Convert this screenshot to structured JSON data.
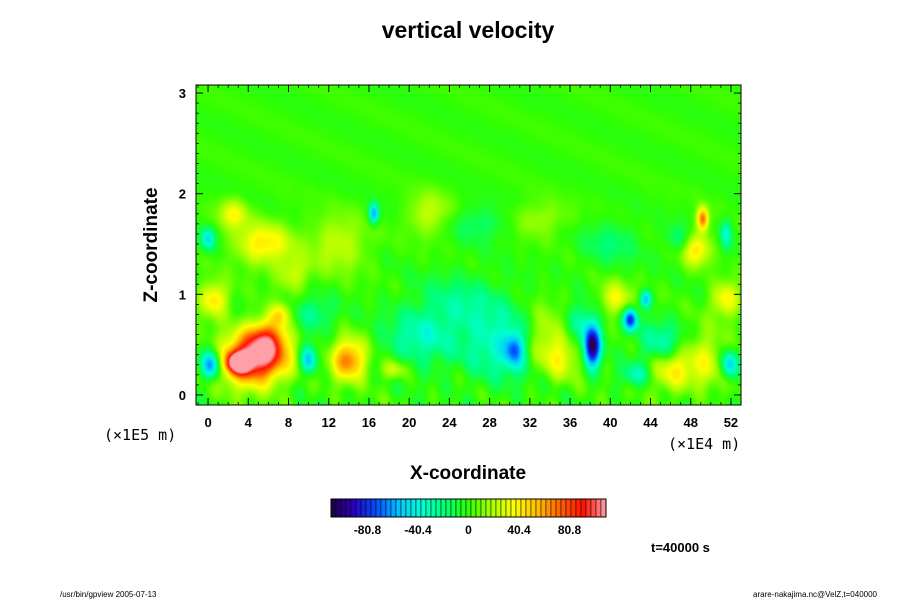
{
  "chart_data": {
    "type": "heatmap",
    "title": "vertical velocity",
    "xlabel": "X-coordinate",
    "ylabel": "Z-coordinate",
    "x_ticks": [
      "0",
      "4",
      "8",
      "12",
      "16",
      "20",
      "24",
      "28",
      "32",
      "36",
      "40",
      "44",
      "48",
      "52"
    ],
    "x_tick_values": [
      0,
      4,
      8,
      12,
      16,
      20,
      24,
      28,
      32,
      36,
      40,
      44,
      48,
      52
    ],
    "y_ticks": [
      "0",
      "1",
      "2",
      "3"
    ],
    "y_tick_values": [
      0,
      1,
      2,
      3
    ],
    "xlim": [
      -1.2,
      53
    ],
    "ylim": [
      -0.1,
      3.08
    ],
    "x_unit": "(×1E4 m)",
    "y_unit": "(×1E5 m)",
    "colorbar": {
      "ticks": [
        "-80.8",
        "-40.4",
        "0",
        "40.4",
        "80.8"
      ],
      "tick_values": [
        -80.8,
        -40.4,
        0,
        40.4,
        80.8
      ],
      "range": [
        -110,
        110
      ],
      "colors": [
        "#20003c",
        "#2a00c0",
        "#0050ff",
        "#00c8ff",
        "#00ffd0",
        "#00ff70",
        "#30ff00",
        "#a8ff00",
        "#ffff00",
        "#ffc000",
        "#ff6000",
        "#ff1000",
        "#ffa0a8"
      ]
    },
    "features": [
      {
        "x": 4.5,
        "z": 0.35,
        "w": 104,
        "sx": 2.2,
        "sz": 0.18
      },
      {
        "x": 3.0,
        "z": 0.32,
        "w": 92,
        "sx": 0.8,
        "sz": 0.07
      },
      {
        "x": 6.0,
        "z": 0.55,
        "w": 62,
        "sx": 1.4,
        "sz": 0.15
      },
      {
        "x": 5.5,
        "z": 1.5,
        "w": 42,
        "sx": 2.0,
        "sz": 0.15
      },
      {
        "x": 7.2,
        "z": 0.8,
        "w": 35,
        "sx": 0.7,
        "sz": 0.08
      },
      {
        "x": 0.3,
        "z": 0.3,
        "w": -72,
        "sx": 0.7,
        "sz": 0.1
      },
      {
        "x": 0.6,
        "z": 0.95,
        "w": 45,
        "sx": 1.0,
        "sz": 0.12
      },
      {
        "x": 2.5,
        "z": 1.8,
        "w": 35,
        "sx": 1.0,
        "sz": 0.1
      },
      {
        "x": 10.0,
        "z": 0.35,
        "w": -55,
        "sx": 0.6,
        "sz": 0.1
      },
      {
        "x": 10.5,
        "z": 0.8,
        "w": -25,
        "sx": 1.5,
        "sz": 0.12
      },
      {
        "x": 14.0,
        "z": 0.35,
        "w": 72,
        "sx": 1.2,
        "sz": 0.14
      },
      {
        "x": 13.0,
        "z": 1.5,
        "w": 25,
        "sx": 2.0,
        "sz": 0.2
      },
      {
        "x": 16.5,
        "z": 1.8,
        "w": -62,
        "sx": 0.35,
        "sz": 0.07
      },
      {
        "x": 18.5,
        "z": 0.25,
        "w": 30,
        "sx": 1.0,
        "sz": 0.07
      },
      {
        "x": 21.0,
        "z": 0.55,
        "w": -30,
        "sx": 2.5,
        "sz": 0.2
      },
      {
        "x": 22.0,
        "z": 1.8,
        "w": 25,
        "sx": 1.5,
        "sz": 0.15
      },
      {
        "x": 25.0,
        "z": 0.9,
        "w": -22,
        "sx": 3.0,
        "sz": 0.2
      },
      {
        "x": 29.0,
        "z": 0.5,
        "w": -35,
        "sx": 2.5,
        "sz": 0.25
      },
      {
        "x": 30.5,
        "z": 0.45,
        "w": -52,
        "sx": 0.7,
        "sz": 0.12
      },
      {
        "x": 38.2,
        "z": 0.47,
        "w": -104,
        "sx": 0.6,
        "sz": 0.14
      },
      {
        "x": 37.0,
        "z": 0.7,
        "w": -35,
        "sx": 1.5,
        "sz": 0.15
      },
      {
        "x": 34.0,
        "z": 0.6,
        "w": 30,
        "sx": 2.0,
        "sz": 0.2
      },
      {
        "x": 35.0,
        "z": 0.35,
        "w": 25,
        "sx": 1.5,
        "sz": 0.15
      },
      {
        "x": 42.0,
        "z": 0.75,
        "w": -82,
        "sx": 0.5,
        "sz": 0.08
      },
      {
        "x": 43.5,
        "z": 0.95,
        "w": -55,
        "sx": 0.4,
        "sz": 0.06
      },
      {
        "x": 40.5,
        "z": 0.95,
        "w": 35,
        "sx": 1.2,
        "sz": 0.12
      },
      {
        "x": 45.0,
        "z": 0.5,
        "w": -35,
        "sx": 1.5,
        "sz": 0.15
      },
      {
        "x": 46.0,
        "z": 0.25,
        "w": 40,
        "sx": 1.5,
        "sz": 0.15
      },
      {
        "x": 42.5,
        "z": 0.2,
        "w": -30,
        "sx": 1.0,
        "sz": 0.08
      },
      {
        "x": 49.5,
        "z": 0.35,
        "w": 30,
        "sx": 1.5,
        "sz": 0.2
      },
      {
        "x": 51.8,
        "z": 0.3,
        "w": -55,
        "sx": 0.6,
        "sz": 0.1
      },
      {
        "x": 48.5,
        "z": 1.45,
        "w": 45,
        "sx": 1.0,
        "sz": 0.12
      },
      {
        "x": 49.2,
        "z": 1.75,
        "w": 72,
        "sx": 0.4,
        "sz": 0.08
      },
      {
        "x": 47.0,
        "z": 1.55,
        "w": -22,
        "sx": 1.0,
        "sz": 0.1
      },
      {
        "x": 51.5,
        "z": 1.6,
        "w": -35,
        "sx": 0.4,
        "sz": 0.1
      },
      {
        "x": 51.5,
        "z": 0.95,
        "w": 40,
        "sx": 1.0,
        "sz": 0.12
      },
      {
        "x": 0.0,
        "z": 1.55,
        "w": -45,
        "sx": 0.5,
        "sz": 0.08
      },
      {
        "x": 27.0,
        "z": 1.7,
        "w": -18,
        "sx": 2.0,
        "sz": 0.12
      },
      {
        "x": 33.0,
        "z": 1.75,
        "w": 18,
        "sx": 2.0,
        "sz": 0.12
      },
      {
        "x": 40.0,
        "z": 1.5,
        "w": -18,
        "sx": 2.0,
        "sz": 0.15
      },
      {
        "x": 8.5,
        "z": 1.2,
        "w": 25,
        "sx": 1.2,
        "sz": 0.12
      }
    ]
  },
  "labels": {
    "time": "t=40000 s",
    "footer_left": "/usr/bin/gpview 2005-07-13",
    "footer_right": "arare-nakajima.nc@VelZ,t=040000"
  }
}
